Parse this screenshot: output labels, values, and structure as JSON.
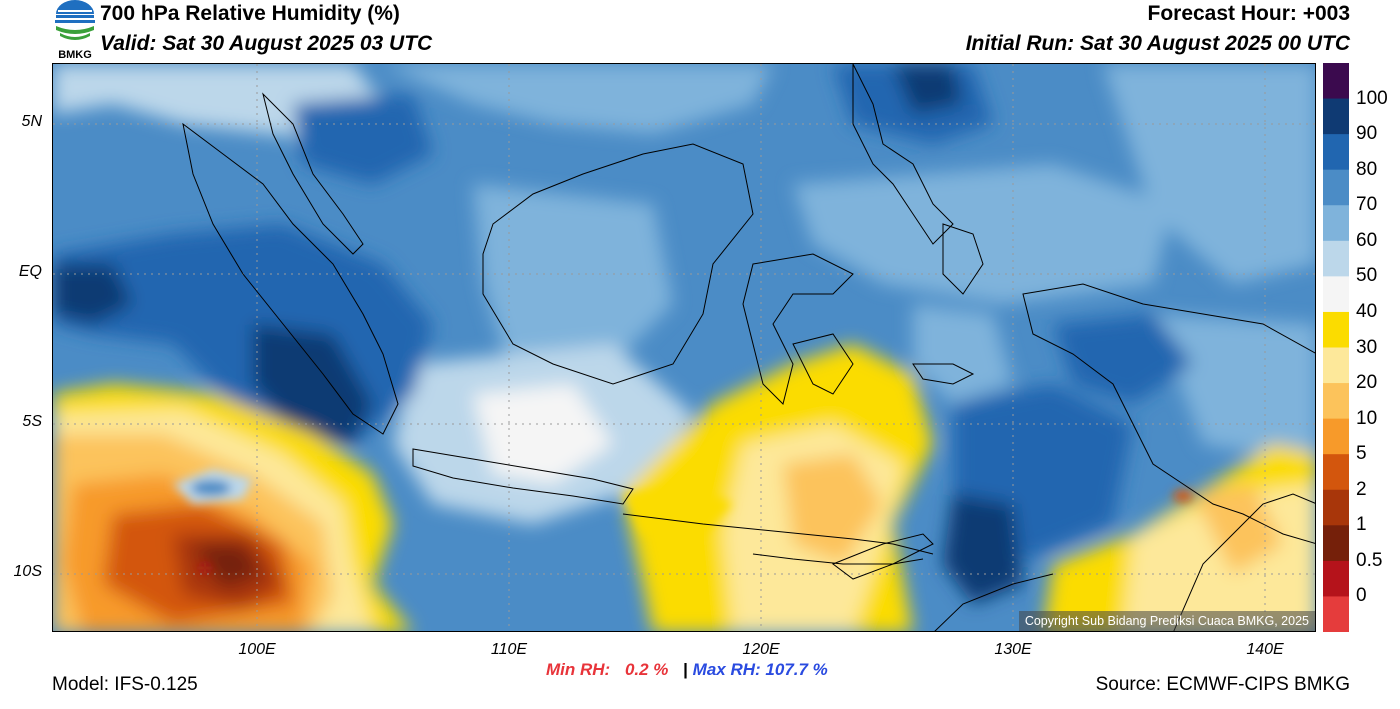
{
  "header": {
    "title": "700 hPa Relative Humidity (%)",
    "valid": "Valid: Sat 30 August 2025 03 UTC",
    "forecast_hour": "Forecast Hour: +003",
    "initial_run": "Initial Run: Sat 30 August 2025 00 UTC"
  },
  "logo": {
    "text": "BMKG"
  },
  "map": {
    "lat_labels": [
      "5N",
      "EQ",
      "5S",
      "10S"
    ],
    "lon_labels": [
      "100E",
      "110E",
      "120E",
      "130E",
      "140E"
    ],
    "copyright": "Copyright Sub Bidang Prediksi Cuaca BMKG, 2025"
  },
  "colorbar": {
    "labels": [
      "100",
      "90",
      "80",
      "70",
      "60",
      "50",
      "40",
      "30",
      "20",
      "10",
      "5",
      "2",
      "1",
      "0.5",
      "0"
    ],
    "colors": [
      "#3b0a4e",
      "#0f3a73",
      "#2166b0",
      "#4b8cc6",
      "#7fb3db",
      "#bcd7ea",
      "#f5f5f5",
      "#fbdc00",
      "#fde89a",
      "#fcc35b",
      "#f79a2a",
      "#d3560d",
      "#a8360a",
      "#75200a",
      "#b5131b",
      "#e53c3c"
    ]
  },
  "stats": {
    "min_label": "Min RH:",
    "min_value": "0.2 %",
    "separator": "|",
    "max_label": "Max RH:",
    "max_value": "107.7 %"
  },
  "footer": {
    "model": "Model: IFS-0.125",
    "source": "Source: ECMWF-CIPS BMKG"
  }
}
